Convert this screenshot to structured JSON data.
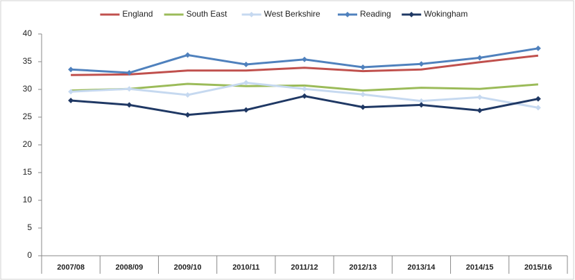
{
  "chart_data": {
    "type": "line",
    "categories": [
      "2007/08",
      "2008/09",
      "2009/10",
      "2010/11",
      "2011/12",
      "2012/13",
      "2013/14",
      "2014/15",
      "2015/16"
    ],
    "series": [
      {
        "name": "England",
        "color": "#c0504d",
        "marker": "none",
        "values": [
          32.6,
          32.7,
          33.4,
          33.4,
          33.9,
          33.3,
          33.6,
          34.9,
          36.1
        ]
      },
      {
        "name": "South East",
        "color": "#9bbb59",
        "marker": "none",
        "values": [
          29.8,
          30.1,
          31.0,
          30.6,
          30.7,
          29.8,
          30.3,
          30.1,
          30.9
        ]
      },
      {
        "name": "West Berkshire",
        "color": "#c6d9f0",
        "marker": "diamond",
        "values": [
          29.6,
          30.1,
          29.0,
          31.2,
          30.1,
          29.1,
          27.9,
          28.6,
          26.7
        ]
      },
      {
        "name": "Reading",
        "color": "#4f81bd",
        "marker": "diamond",
        "values": [
          33.6,
          33.0,
          36.2,
          34.5,
          35.4,
          34.0,
          34.6,
          35.7,
          37.4
        ]
      },
      {
        "name": "Wokingham",
        "color": "#1f3864",
        "marker": "diamond",
        "values": [
          28.0,
          27.2,
          25.4,
          26.3,
          28.8,
          26.8,
          27.2,
          26.2,
          28.3
        ]
      }
    ],
    "ylim": [
      0,
      40
    ],
    "yticks": [
      0,
      5,
      10,
      15,
      20,
      25,
      30,
      35,
      40
    ],
    "grid": false,
    "legend": "top"
  }
}
